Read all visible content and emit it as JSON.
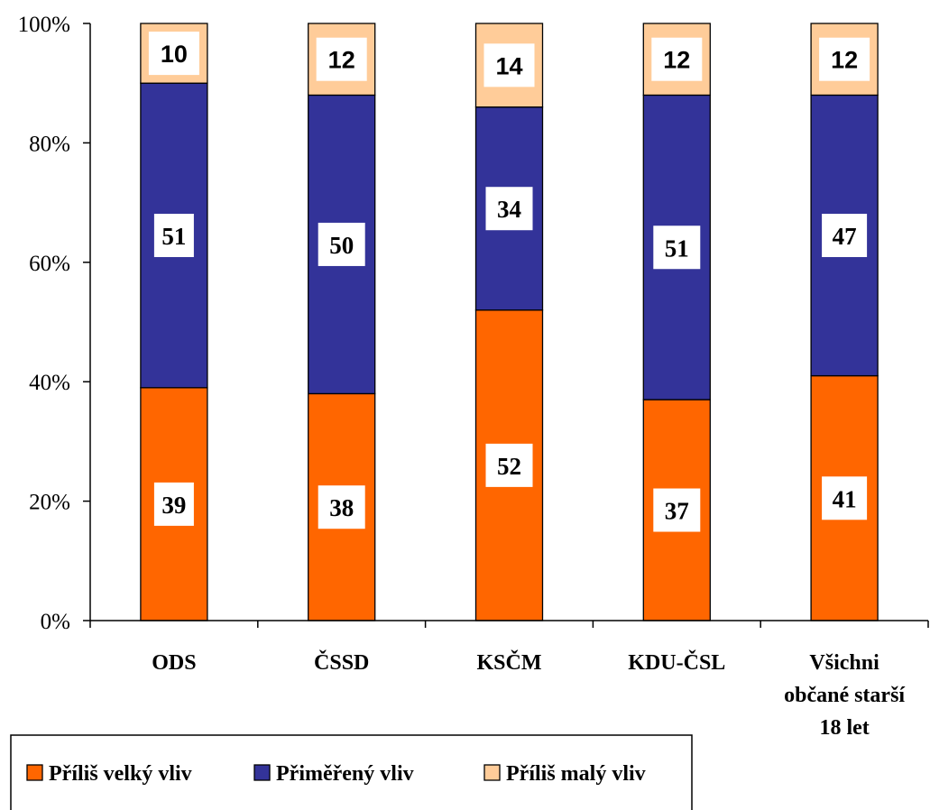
{
  "chart_data": {
    "type": "bar",
    "stacked": true,
    "percent": true,
    "categories": [
      [
        "ODS"
      ],
      [
        "ČSSD"
      ],
      [
        "KSČM"
      ],
      [
        "KDU-ČSL"
      ],
      [
        "Všichni",
        "občané starší",
        "18 let"
      ]
    ],
    "series": [
      {
        "name": "Příliš velký vliv",
        "values": [
          39,
          38,
          52,
          37,
          41
        ],
        "color": "#FF6600"
      },
      {
        "name": "Přiměřený vliv",
        "values": [
          51,
          50,
          34,
          51,
          47
        ],
        "color": "#333399"
      },
      {
        "name": "Příliš malý vliv",
        "values": [
          10,
          12,
          14,
          12,
          12
        ],
        "color": "#FFCC99"
      }
    ],
    "ylim": [
      0,
      100
    ],
    "yticks": [
      "0%",
      "20%",
      "40%",
      "60%",
      "80%",
      "100%"
    ],
    "grid": false,
    "legend_position": "bottom-left"
  }
}
